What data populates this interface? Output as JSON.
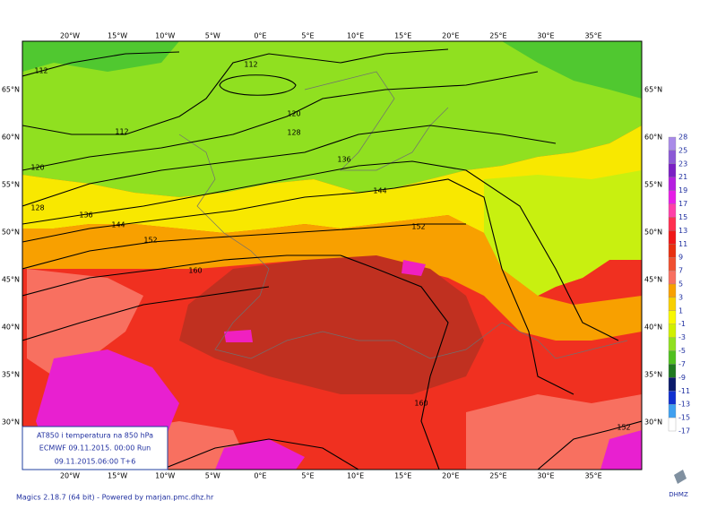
{
  "map": {
    "longitude_labels": [
      "20°W",
      "15°W",
      "10°W",
      "5°W",
      "0°E",
      "5°E",
      "10°E",
      "15°E",
      "20°E",
      "25°E",
      "30°E",
      "35°E"
    ],
    "latitude_labels": [
      "65°N",
      "60°N",
      "55°N",
      "50°N",
      "45°N",
      "40°N",
      "35°N",
      "30°N"
    ],
    "contour_labels": [
      112,
      112,
      112,
      120,
      128,
      136,
      144,
      120,
      128,
      136,
      144,
      152,
      152,
      160,
      152,
      160
    ],
    "colorbar": {
      "labels": [
        28,
        25,
        23,
        21,
        19,
        17,
        15,
        13,
        11,
        9,
        7,
        5,
        3,
        1,
        -1,
        -3,
        -5,
        -7,
        -9,
        -11,
        -13,
        -15,
        -17
      ],
      "colors": [
        "#a98be8",
        "#8c5ad6",
        "#7a1fc4",
        "#b51fe0",
        "#e61fe6",
        "#ff40a8",
        "#ff3050",
        "#f01818",
        "#e83010",
        "#f05030",
        "#f87060",
        "#f8a000",
        "#f8d000",
        "#f8f800",
        "#d0f000",
        "#90e020",
        "#50c020",
        "#207a20",
        "#0a1a6a",
        "#1030d0",
        "#40a0f0",
        "#ffffff"
      ]
    },
    "info_box": {
      "line1": "AT850 i temperatura na 850 hPa",
      "line2": "ECMWF 09.11.2015.  00:00 Run",
      "line3": "09.11.2015.06:00   T+6"
    },
    "footer": "Magics 2.18.7 (64 bit) - Powered by marjan.pmc.dhz.hr",
    "logo": "DHMZ"
  }
}
